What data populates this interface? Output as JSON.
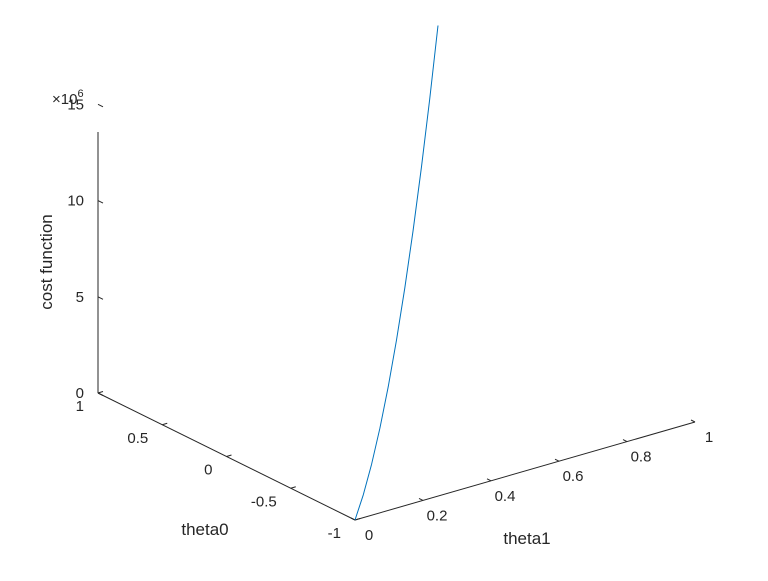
{
  "chart_data": {
    "type": "line",
    "view": "3d",
    "title": "",
    "xlabel": "theta1",
    "ylabel": "theta0",
    "zlabel": "cost function",
    "xlim": [
      0,
      1
    ],
    "ylim": [
      -1,
      1
    ],
    "zlim": [
      0,
      15000000
    ],
    "x_ticks": [
      "0",
      "0.2",
      "0.4",
      "0.6",
      "0.8",
      "1"
    ],
    "y_ticks": [
      "-1",
      "-0.5",
      "0",
      "0.5",
      "1"
    ],
    "z_ticks": [
      "0",
      "5",
      "10",
      "15"
    ],
    "z_exponent_label": "×10",
    "z_exponent_power": "6",
    "grid": false,
    "line_color": "#0072bd",
    "series": [
      {
        "x": [
          0,
          0.1,
          0.2,
          0.3,
          0.4,
          0.5,
          0.6,
          0.7,
          0.8,
          0.9,
          1.0
        ],
        "y": [
          -1,
          -0.8,
          -0.6,
          -0.4,
          -0.2,
          0,
          0.2,
          0.4,
          0.6,
          0.8,
          1
        ],
        "z": [
          0,
          140000,
          560000,
          1260000,
          2240000,
          3500000,
          5040000,
          6860000,
          8960000,
          11340000,
          14000000
        ]
      }
    ]
  }
}
